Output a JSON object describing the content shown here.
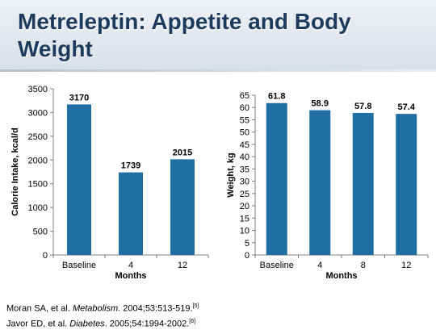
{
  "slide": {
    "title": "Metreleptin: Appetite and Body Weight"
  },
  "references": [
    {
      "authors": "Moran SA, et al. ",
      "journal": "Metabolism.",
      "details": " 2004;53:513-519.",
      "note": "[5]"
    },
    {
      "authors": "Javor ED, et al. ",
      "journal": "Diabetes",
      "details": ". 2005;54:1994-2002.",
      "note": "[6]"
    }
  ],
  "colors": {
    "bar": "#1f6fa5",
    "title": "#1c3a5c"
  },
  "chart_data": [
    {
      "type": "bar",
      "categories": [
        "Baseline",
        "4",
        "12"
      ],
      "values": [
        3170,
        1739,
        2015
      ],
      "data_labels": [
        "3170",
        "1739",
        "2015"
      ],
      "xlabel": "Months",
      "ylabel": "Calorie Intake, kcal/d",
      "ylim": [
        0,
        3500
      ],
      "yticks": [
        0,
        500,
        1000,
        1500,
        2000,
        2500,
        3000,
        3500
      ],
      "grid": false,
      "legend": "none"
    },
    {
      "type": "bar",
      "categories": [
        "Baseline",
        "4",
        "8",
        "12"
      ],
      "values": [
        61.8,
        58.9,
        57.8,
        57.4
      ],
      "data_labels": [
        "61.8",
        "58.9",
        "57.8",
        "57.4"
      ],
      "xlabel": "Months",
      "ylabel": "Weight, kg",
      "ylim": [
        0,
        65
      ],
      "yticks": [
        0,
        5,
        10,
        15,
        20,
        25,
        30,
        35,
        40,
        45,
        50,
        55,
        60,
        65
      ],
      "grid": false,
      "legend": "none"
    }
  ]
}
